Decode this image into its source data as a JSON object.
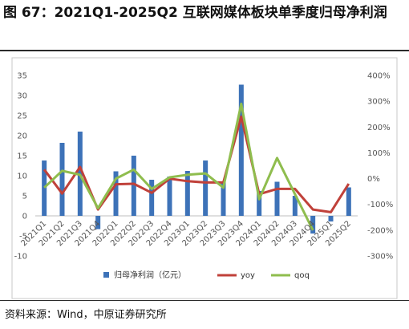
{
  "figure": {
    "title": "图 67：2021Q1-2025Q2 互联网媒体板块单季度归母净利润",
    "source": "资料来源：Wind，中原证券研究所"
  },
  "colors": {
    "bar": "#3d72b8",
    "yoy": "#c0413a",
    "qoq": "#8fbd4e",
    "frame": "#c8c8c8"
  },
  "chart_data": {
    "type": "bar",
    "categories": [
      "2021Q1",
      "2021Q2",
      "2021Q3",
      "2021Q4",
      "2022Q1",
      "2022Q2",
      "2022Q3",
      "2022Q4",
      "2023Q1",
      "2023Q2",
      "2023Q3",
      "2023Q4",
      "2024Q1",
      "2024Q2",
      "2024Q3",
      "2024Q4",
      "2025Q1",
      "2025Q2"
    ],
    "series": [
      {
        "name": "归母净利润（亿元）",
        "type": "bar",
        "axis": "left",
        "values": [
          13.8,
          18.2,
          21.0,
          -3.3,
          11.1,
          15.0,
          9.0,
          9.8,
          11.2,
          13.8,
          8.6,
          32.7,
          6.2,
          8.5,
          5.0,
          -4.4,
          -1.4,
          7.1
        ]
      },
      {
        "name": "yoy",
        "type": "line",
        "axis": "right",
        "values": [
          35,
          -58,
          45,
          -120,
          -22,
          -20,
          -55,
          0,
          -10,
          -15,
          -15,
          240,
          -60,
          -40,
          -40,
          -120,
          -130,
          -20
        ]
      },
      {
        "name": "qoq",
        "type": "line",
        "axis": "right",
        "values": [
          -35,
          30,
          15,
          -115,
          0,
          35,
          -40,
          5,
          15,
          20,
          -35,
          290,
          -80,
          80,
          -60,
          -200,
          null,
          null
        ]
      }
    ],
    "y_left": {
      "min": -10,
      "max": 35,
      "step": 5,
      "tick_labels": [
        "-10",
        "-5",
        "0",
        "5",
        "10",
        "15",
        "20",
        "25",
        "30",
        "35"
      ]
    },
    "y_right": {
      "min": -300,
      "max": 400,
      "step": 100,
      "tick_labels": [
        "-300%",
        "-200%",
        "-100%",
        "0%",
        "100%",
        "200%",
        "300%",
        "400%"
      ]
    },
    "grid": false,
    "legend_position": "bottom"
  }
}
